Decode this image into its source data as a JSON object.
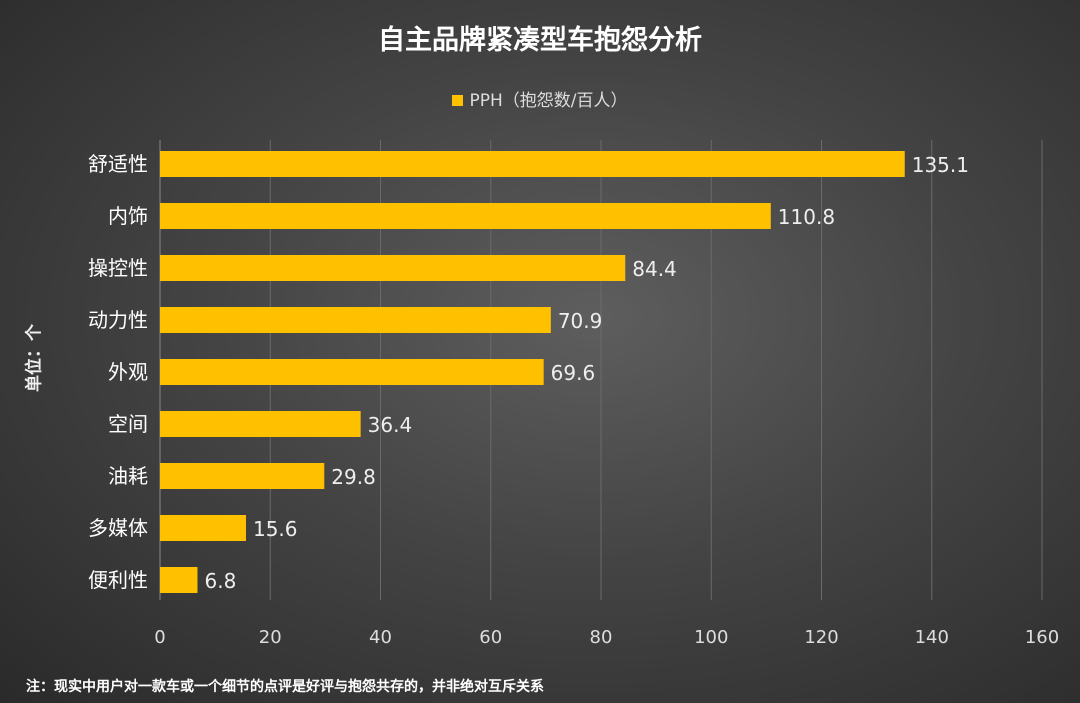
{
  "chart_data": {
    "type": "bar",
    "orientation": "horizontal",
    "title": "自主品牌紧凑型车抱怨分析",
    "legend": [
      "PPH（抱怨数/百人）"
    ],
    "legend_position": "top",
    "ylabel": "单位：个",
    "categories": [
      "舒适性",
      "内饰",
      "操控性",
      "动力性",
      "外观",
      "空间",
      "油耗",
      "多媒体",
      "便利性"
    ],
    "values": [
      135.1,
      110.8,
      84.4,
      70.9,
      69.6,
      36.4,
      29.8,
      15.6,
      6.8
    ],
    "xlim": [
      0,
      160
    ],
    "xticks": [
      0,
      20,
      40,
      60,
      80,
      100,
      120,
      140,
      160
    ],
    "grid": true,
    "bar_color": "#FFC000"
  },
  "note": "注：现实中用户对一款车或一个细节的点评是好评与抱怨共存的，并非绝对互斥关系"
}
